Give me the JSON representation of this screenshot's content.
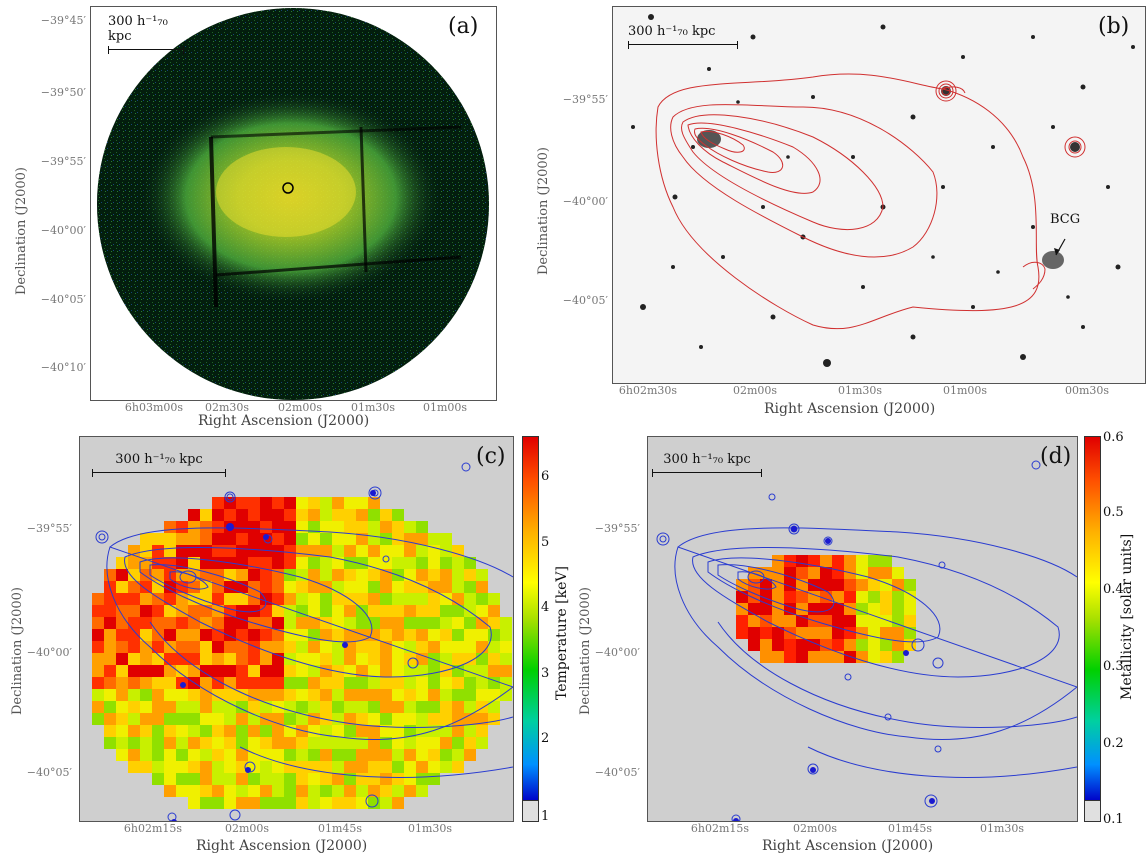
{
  "panels": {
    "a": {
      "label": "(a)",
      "scale_bar": "300 h⁻¹₇₀ kpc",
      "yticks": [
        "−39°45′",
        "−39°50′",
        "−39°55′",
        "−40°00′",
        "−40°05′",
        "−40°10′"
      ],
      "xticks": [
        "6h03m00s",
        "02m30s",
        "02m00s",
        "01m30s",
        "01m00s"
      ],
      "ylabel": "Declination (J2000)",
      "xlabel": "Right Ascension (J2000)"
    },
    "b": {
      "label": "(b)",
      "scale_bar": "300 h⁻¹₇₀ kpc",
      "yticks": [
        "−39°55′",
        "−40°00′",
        "−40°05′"
      ],
      "xticks": [
        "6h02m30s",
        "02m00s",
        "01m30s",
        "01m00s",
        "00m30s"
      ],
      "ylabel": "Declination (J2000)",
      "xlabel": "Right Ascension (J2000)",
      "annotation": "BCG"
    },
    "c": {
      "label": "(c)",
      "scale_bar": "300 h⁻¹₇₀ kpc",
      "yticks": [
        "−39°55′",
        "−40°00′",
        "−40°05′"
      ],
      "xticks": [
        "6h02m15s",
        "02m00s",
        "01m45s",
        "01m30s"
      ],
      "ylabel": "Declination (J2000)",
      "xlabel": "Right Ascension (J2000)",
      "colorbar_label": "Temperature [keV]",
      "colorbar_ticks": [
        "6",
        "5",
        "4",
        "3",
        "2",
        "1"
      ]
    },
    "d": {
      "label": "(d)",
      "scale_bar": "300 h⁻¹₇₀ kpc",
      "yticks": [
        "−39°55′",
        "−40°00′",
        "−40°05′"
      ],
      "xticks": [
        "6h02m15s",
        "02m00s",
        "01m45s",
        "01m30s"
      ],
      "ylabel": "Declination (J2000)",
      "xlabel": "Right Ascension (J2000)",
      "colorbar_label": "Metallicity [solar units]",
      "colorbar_ticks": [
        "0.6",
        "0.5",
        "0.4",
        "0.3",
        "0.2",
        "0.1"
      ]
    }
  },
  "colors": {
    "xray_bg": "#000000",
    "xray_glow": "#d8e020",
    "contour_red": "#d03030",
    "contour_blue": "#2a3cd0",
    "map_bg": "#cfcfcf"
  }
}
